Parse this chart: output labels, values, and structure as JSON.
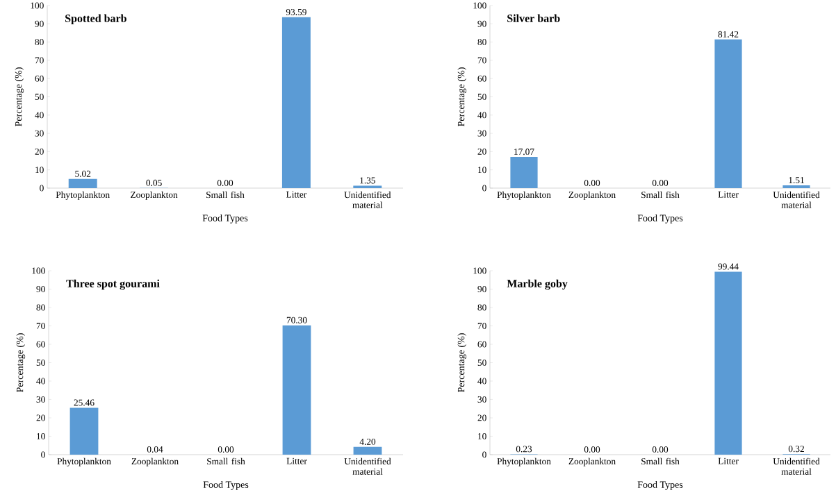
{
  "chart_data": [
    {
      "type": "bar",
      "title": "Spotted barb",
      "xlabel": "Food Types",
      "ylabel": "Percentage (%)",
      "categories": [
        "Phytoplankton",
        "Zooplankton",
        "Small fish",
        "Litter",
        "Unidentified material"
      ],
      "values": [
        5.02,
        0.05,
        0.0,
        93.59,
        1.35
      ],
      "value_labels": [
        "5.02",
        "0.05",
        "0.00",
        "93.59",
        "1.35"
      ],
      "color": "#5b9bd5",
      "ylim": [
        0,
        100
      ],
      "yticks": [
        0,
        10,
        20,
        30,
        40,
        50,
        60,
        70,
        80,
        90,
        100
      ]
    },
    {
      "type": "bar",
      "title": "Silver barb",
      "xlabel": "Food Types",
      "ylabel": "Percentage (%)",
      "categories": [
        "Phytoplankton",
        "Zooplankton",
        "Small fish",
        "Litter",
        "Unidentified material"
      ],
      "values": [
        17.07,
        0.0,
        0.0,
        81.42,
        1.51
      ],
      "value_labels": [
        "17.07",
        "0.00",
        "0.00",
        "81.42",
        "1.51"
      ],
      "color": "#5b9bd5",
      "ylim": [
        0,
        100
      ],
      "yticks": [
        0,
        10,
        20,
        30,
        40,
        50,
        60,
        70,
        80,
        90,
        100
      ]
    },
    {
      "type": "bar",
      "title": "Three spot gourami",
      "xlabel": "Food Types",
      "ylabel": "Percentage (%)",
      "categories": [
        "Phytoplankton",
        "Zooplankton",
        "Small fish",
        "Litter",
        "Unidentified material"
      ],
      "values": [
        25.46,
        0.04,
        0.0,
        70.3,
        4.2
      ],
      "value_labels": [
        "25.46",
        "0.04",
        "0.00",
        "70.30",
        "4.20"
      ],
      "color": "#5b9bd5",
      "ylim": [
        0,
        100
      ],
      "yticks": [
        0,
        10,
        20,
        30,
        40,
        50,
        60,
        70,
        80,
        90,
        100
      ]
    },
    {
      "type": "bar",
      "title": "Marble goby",
      "xlabel": "Food Types",
      "ylabel": "Percentage (%)",
      "categories": [
        "Phytoplankton",
        "Zooplankton",
        "Small fish",
        "Litter",
        "Unidentified material"
      ],
      "values": [
        0.23,
        0.0,
        0.0,
        99.44,
        0.32
      ],
      "value_labels": [
        "0.23",
        "0.00",
        "0.00",
        "99.44",
        "0.32"
      ],
      "color": "#5b9bd5",
      "ylim": [
        0,
        100
      ],
      "yticks": [
        0,
        10,
        20,
        30,
        40,
        50,
        60,
        70,
        80,
        90,
        100
      ]
    }
  ]
}
